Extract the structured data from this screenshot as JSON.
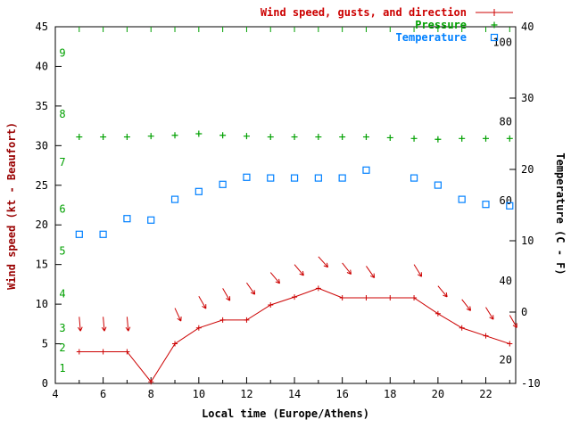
{
  "chart_data": {
    "type": "line",
    "title": "",
    "xlabel": "Local time (Europe/Athens)",
    "ylabel_left": "Wind speed (kt - Beaufort)",
    "ylabel_right": "Temperature (C - F)",
    "x_axis": {
      "min": 4,
      "max": 23.25,
      "labeled_ticks": [
        4,
        6,
        8,
        10,
        12,
        14,
        16,
        18,
        20,
        22
      ],
      "minor_ticks": [
        5,
        7,
        9,
        11,
        13,
        15,
        17,
        19,
        21,
        23
      ],
      "top_tick_hours": [
        5,
        6,
        7,
        8,
        9,
        10,
        11,
        12,
        13,
        14,
        15,
        16,
        17,
        18,
        19,
        20,
        21,
        22,
        23
      ]
    },
    "y_left": {
      "min": 0,
      "max": 45,
      "ticks": [
        0,
        5,
        10,
        15,
        20,
        25,
        30,
        35,
        40,
        45
      ],
      "beaufort_labels": [
        {
          "b": "1",
          "kt": 1.9
        },
        {
          "b": "2",
          "kt": 4.5
        },
        {
          "b": "3",
          "kt": 7
        },
        {
          "b": "4",
          "kt": 11.3
        },
        {
          "b": "5",
          "kt": 16.7
        },
        {
          "b": "6",
          "kt": 22
        },
        {
          "b": "7",
          "kt": 27.9
        },
        {
          "b": "8",
          "kt": 34
        },
        {
          "b": "9",
          "kt": 41.7
        }
      ]
    },
    "y_right": {
      "min": -10,
      "max": 40,
      "ticks": [
        -10,
        0,
        10,
        20,
        30,
        40
      ],
      "fahrenheit_labels": [
        {
          "f": "20",
          "c": -6.7
        },
        {
          "f": "40",
          "c": 4.4
        },
        {
          "f": "60",
          "c": 15.6
        },
        {
          "f": "80",
          "c": 26.7
        },
        {
          "f": "100",
          "c": 37.8
        }
      ]
    },
    "colors": {
      "wind": "#cc0000",
      "pressure": "#00a000",
      "temperature": "#0080ff",
      "beaufort": "#00a000",
      "axis": "#000000",
      "left_axis_title": "#990000"
    },
    "legend": [
      {
        "label": "Wind speed, gusts, and direction",
        "series": "wind",
        "marker": "line-plus"
      },
      {
        "label": "Pressure",
        "series": "pressure",
        "marker": "plus"
      },
      {
        "label": "Temperature",
        "series": "temperature",
        "marker": "square"
      }
    ],
    "series": {
      "wind_speed_kt": {
        "x": [
          5,
          6,
          7,
          8,
          9,
          10,
          11,
          12,
          13,
          14,
          15,
          16,
          17,
          18,
          19,
          20,
          21,
          22,
          23
        ],
        "y": [
          4,
          4,
          4,
          0.2,
          5,
          7,
          8,
          8,
          9.9,
          10.9,
          12,
          10.8,
          10.8,
          10.8,
          10.8,
          8.8,
          7,
          6,
          5
        ]
      },
      "gusts_kt": {
        "x": [
          5,
          6,
          7,
          9,
          10,
          11,
          12,
          13,
          14,
          15,
          16,
          17,
          19,
          20,
          21,
          22,
          23
        ],
        "y": [
          8.4,
          8.4,
          8.4,
          9.5,
          11,
          12,
          12.7,
          14,
          15,
          16,
          15.2,
          14.8,
          15,
          12.3,
          10.6,
          9.6,
          8.6
        ],
        "arrow_dir_deg": [
          175,
          175,
          175,
          155,
          150,
          150,
          145,
          140,
          140,
          138,
          142,
          145,
          148,
          140,
          142,
          148,
          150
        ]
      },
      "pressure_marker_row_kt": {
        "x": [
          5,
          6,
          7,
          8,
          9,
          10,
          11,
          12,
          13,
          14,
          15,
          16,
          17,
          18,
          19,
          20,
          21,
          22,
          23
        ],
        "y": [
          31.1,
          31.1,
          31.1,
          31.2,
          31.3,
          31.5,
          31.3,
          31.2,
          31.1,
          31.1,
          31.1,
          31.1,
          31.1,
          31,
          30.9,
          30.8,
          30.9,
          30.9,
          30.9
        ]
      },
      "temperature_c": {
        "x": [
          5,
          6,
          7,
          8,
          9,
          10,
          11,
          12,
          13,
          14,
          15,
          16,
          17,
          19,
          20,
          21,
          22,
          23
        ],
        "y": [
          10.9,
          10.9,
          13.1,
          12.9,
          15.8,
          16.9,
          17.9,
          18.9,
          18.8,
          18.8,
          18.8,
          18.8,
          19.9,
          18.8,
          17.8,
          15.8,
          15.1,
          14.9
        ]
      }
    }
  }
}
